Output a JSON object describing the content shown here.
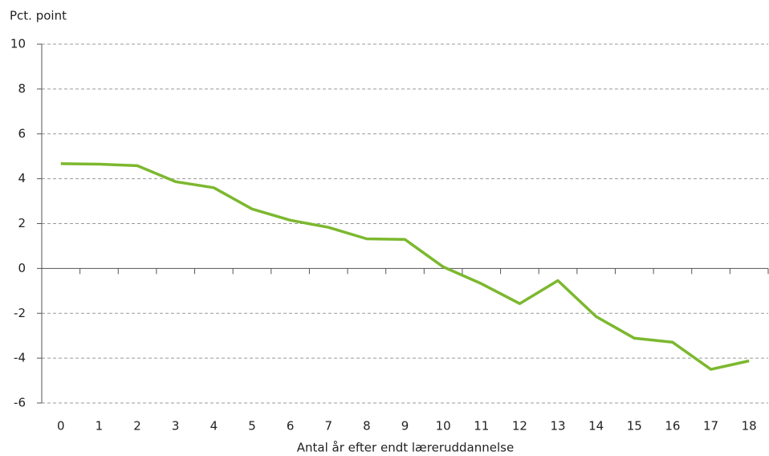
{
  "chart_data": {
    "type": "line",
    "y_axis_label": "Pct. point",
    "x_axis_label": "Antal år efter endt læreruddannelse",
    "categories": [
      "0",
      "1",
      "2",
      "3",
      "4",
      "5",
      "6",
      "7",
      "8",
      "9",
      "10",
      "11",
      "12",
      "13",
      "14",
      "15",
      "16",
      "17",
      "18"
    ],
    "values": [
      4.67,
      4.65,
      4.58,
      3.87,
      3.6,
      2.65,
      2.15,
      1.83,
      1.32,
      1.29,
      0.07,
      -0.68,
      -1.57,
      -0.54,
      -2.15,
      -3.11,
      -3.29,
      -4.5,
      -4.12
    ],
    "color": "#7cb82f",
    "ylim": [
      -6,
      10
    ],
    "yticks": [
      -6,
      -4,
      -2,
      0,
      2,
      4,
      6,
      8,
      10
    ],
    "grid": true
  }
}
